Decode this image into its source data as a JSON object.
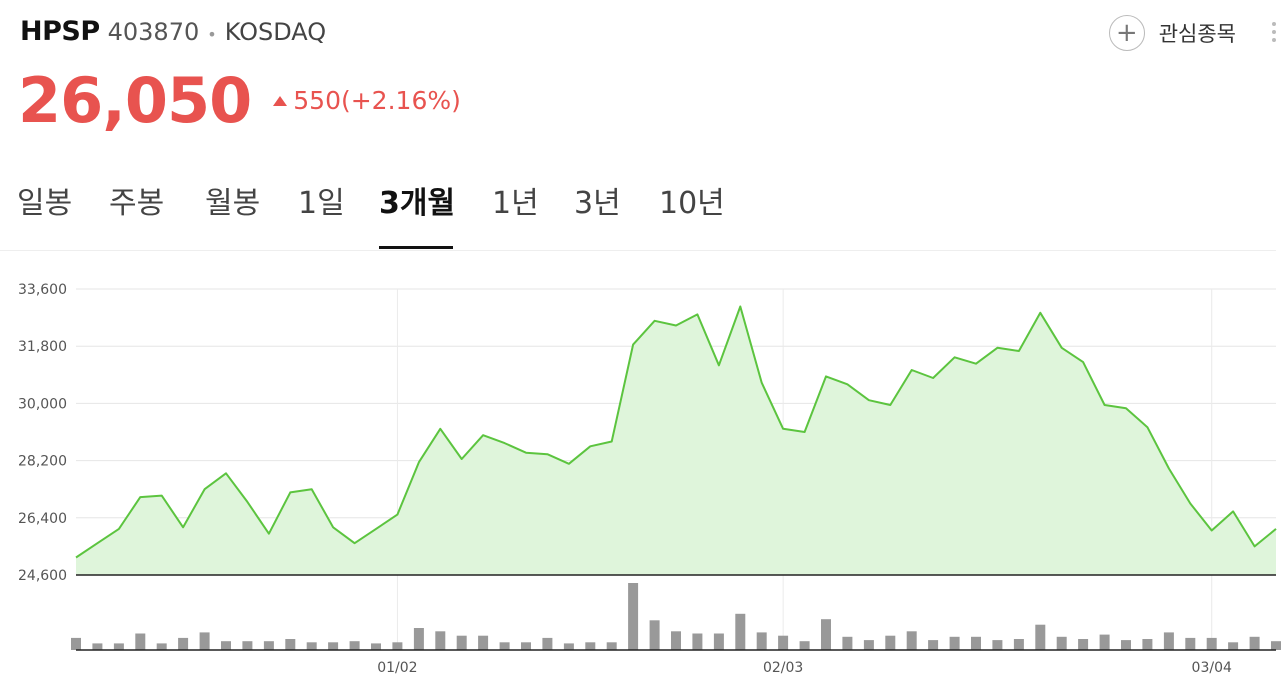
{
  "stock": {
    "name": "HPSP",
    "code": "403870",
    "separator": "•",
    "market": "KOSDAQ",
    "watch_label": "관심종목",
    "price": "26,050",
    "change": "550(+2.16%)",
    "up_color": "#e8534f"
  },
  "tabs": [
    "일봉",
    "주봉",
    "월봉",
    "1일",
    "3개월",
    "1년",
    "3년",
    "10년"
  ],
  "active_tab": "3개월",
  "chart_data": {
    "type": "area",
    "title": "",
    "xlabel": "",
    "ylabel": "",
    "ylim": [
      24600,
      33600
    ],
    "yticks": [
      "33,600",
      "31,800",
      "30,000",
      "28,200",
      "26,400",
      "24,600"
    ],
    "xticks": [
      {
        "label": "01/02",
        "index": 15
      },
      {
        "label": "02/03",
        "index": 33
      },
      {
        "label": "03/04",
        "index": 53
      }
    ],
    "line_color": "#5cc43f",
    "fill_color": "#dff5db",
    "volume_color": "#999999",
    "prices": [
      25150,
      25600,
      26050,
      27050,
      27100,
      26100,
      27300,
      27800,
      26900,
      25900,
      27200,
      27300,
      26100,
      25600,
      26050,
      26500,
      28150,
      29200,
      28250,
      29000,
      28750,
      28450,
      28400,
      28100,
      28650,
      28800,
      31850,
      32600,
      32450,
      32800,
      31200,
      33050,
      30650,
      29200,
      29100,
      30850,
      30600,
      30100,
      29950,
      31050,
      30800,
      31450,
      31250,
      31750,
      31650,
      32850,
      31750,
      31300,
      29950,
      29850,
      29250,
      27950,
      26850,
      26000,
      26600,
      25500,
      26050
    ],
    "volumes": [
      11,
      6,
      6,
      15,
      6,
      11,
      16,
      8,
      8,
      8,
      10,
      7,
      7,
      8,
      6,
      7,
      20,
      17,
      13,
      13,
      7,
      7,
      11,
      6,
      7,
      7,
      61,
      27,
      17,
      15,
      15,
      33,
      16,
      13,
      8,
      28,
      12,
      9,
      13,
      17,
      9,
      12,
      12,
      9,
      10,
      23,
      12,
      10,
      14,
      9,
      10,
      16,
      11,
      11,
      7,
      12,
      8
    ]
  }
}
